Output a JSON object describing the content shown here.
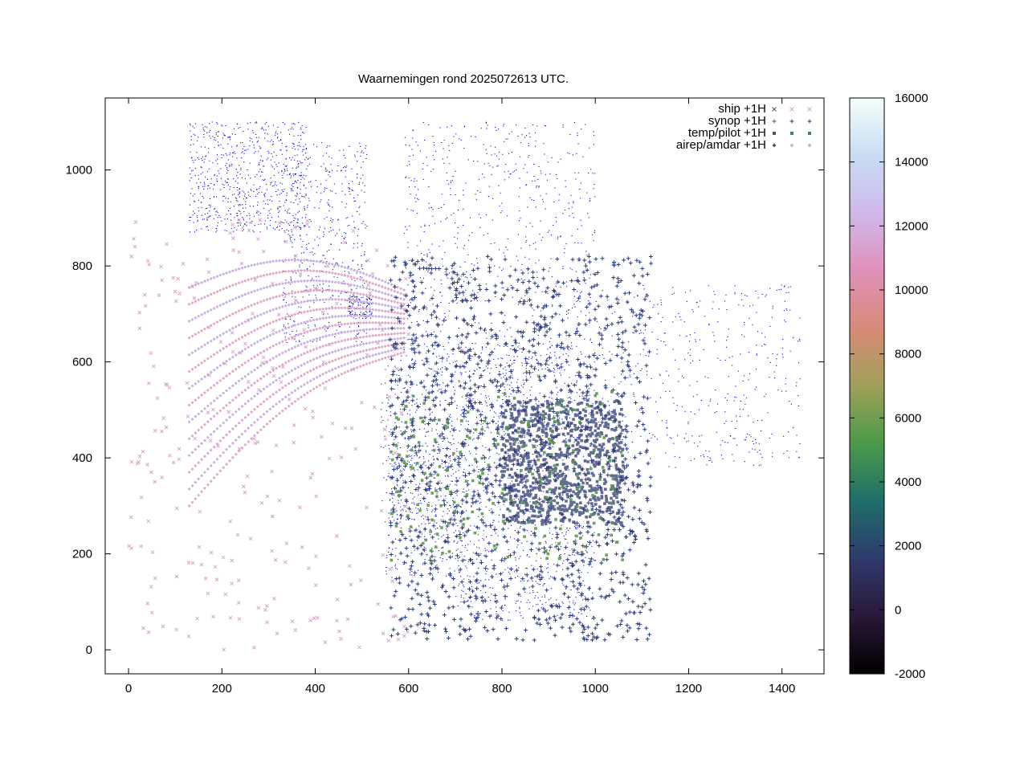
{
  "chart_data": {
    "type": "scatter",
    "title": "Waarnemingen rond 2025072613 UTC.",
    "xlim": [
      -50,
      1490
    ],
    "ylim": [
      -50,
      1150
    ],
    "x_ticks": [
      0,
      200,
      400,
      600,
      800,
      1000,
      1200,
      1400
    ],
    "y_ticks": [
      0,
      200,
      400,
      600,
      800,
      1000
    ],
    "grid": false,
    "legend_position": "top-right",
    "series": [
      {
        "name": "ship +1H",
        "marker": "x",
        "color": "#d8a4c8"
      },
      {
        "name": "synop +1H",
        "marker": "+",
        "color": "#2a3a7a"
      },
      {
        "name": "temp/pilot +1H",
        "marker": "square",
        "color": "#3a8a5a"
      },
      {
        "name": "airep/amdar +1H",
        "marker": "diamond",
        "color": "#c8b0e0"
      }
    ],
    "colorbar": {
      "min": -2000,
      "max": 16000,
      "ticks": [
        -2000,
        0,
        2000,
        4000,
        6000,
        8000,
        10000,
        12000,
        14000,
        16000
      ],
      "stops": [
        "#000000",
        "#2a1838",
        "#2e3a6e",
        "#1e6e6a",
        "#4a9a4a",
        "#a0a058",
        "#d88a78",
        "#e090b8",
        "#d0b8ec",
        "#c8dcf4",
        "#f4fff8"
      ]
    },
    "coastline_color": "#0000c8"
  }
}
